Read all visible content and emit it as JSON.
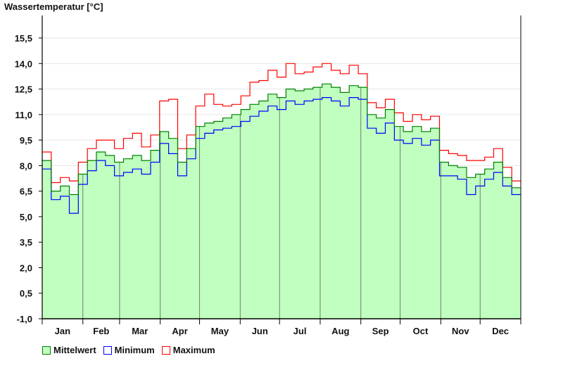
{
  "chart_data": {
    "type": "line",
    "title": "Wassertemperatur [°C]",
    "xlabel": "",
    "ylabel": "Wassertemperatur [°C]",
    "ylim": [
      -1.0,
      16.9
    ],
    "yticks": [
      "-1,0",
      "0,5",
      "2,0",
      "3,5",
      "5,0",
      "6,5",
      "8,0",
      "9,5",
      "11,0",
      "12,5",
      "14,0",
      "15,5"
    ],
    "ytick_values": [
      -1.0,
      0.5,
      2.0,
      3.5,
      5.0,
      6.5,
      8.0,
      9.5,
      11.0,
      12.5,
      14.0,
      15.5
    ],
    "months": [
      "Jan",
      "Feb",
      "Mar",
      "Apr",
      "May",
      "Jun",
      "Jul",
      "Aug",
      "Sep",
      "Oct",
      "Nov",
      "Dec"
    ],
    "month_days": [
      31,
      28,
      31,
      30,
      31,
      30,
      31,
      31,
      30,
      31,
      30,
      31
    ],
    "x_unit": "week of year",
    "grid": true,
    "legend_position": "bottom-left",
    "series": [
      {
        "name": "Mittelwert",
        "color": "#008000",
        "fill": "#c0ffc0",
        "values": [
          8.3,
          6.5,
          6.8,
          6.3,
          7.5,
          8.3,
          8.8,
          8.6,
          8.2,
          8.4,
          8.6,
          8.3,
          8.9,
          10.0,
          9.6,
          8.2,
          9.0,
          10.3,
          10.5,
          10.6,
          10.8,
          11.0,
          11.3,
          11.6,
          11.8,
          12.2,
          12.0,
          12.5,
          12.4,
          12.5,
          12.6,
          12.8,
          12.6,
          12.3,
          12.7,
          12.6,
          11.0,
          10.8,
          11.3,
          10.3,
          10.0,
          10.3,
          10.0,
          10.2,
          8.2,
          8.0,
          7.9,
          7.3,
          7.5,
          7.8,
          8.2,
          7.3,
          6.7
        ]
      },
      {
        "name": "Minimum",
        "color": "#0000ff",
        "values": [
          7.8,
          6.0,
          6.2,
          5.2,
          6.9,
          7.7,
          8.3,
          8.0,
          7.4,
          7.6,
          7.8,
          7.5,
          8.2,
          9.3,
          8.7,
          7.4,
          8.4,
          9.6,
          9.9,
          10.1,
          10.2,
          10.3,
          10.6,
          10.9,
          11.2,
          11.5,
          11.3,
          11.8,
          11.6,
          11.8,
          11.9,
          12.0,
          11.8,
          11.5,
          12.0,
          11.9,
          10.2,
          9.9,
          10.5,
          9.5,
          9.3,
          9.6,
          9.2,
          9.5,
          7.4,
          7.4,
          7.2,
          6.3,
          6.8,
          7.2,
          7.6,
          6.8,
          6.3
        ]
      },
      {
        "name": "Maximum",
        "color": "#ff0000",
        "values": [
          8.8,
          7.0,
          7.3,
          7.1,
          8.2,
          9.0,
          9.5,
          9.5,
          9.0,
          9.6,
          9.9,
          9.1,
          9.8,
          11.8,
          11.9,
          9.0,
          9.8,
          11.5,
          12.2,
          11.6,
          11.5,
          11.6,
          12.1,
          12.9,
          13.0,
          13.6,
          13.2,
          14.0,
          13.4,
          13.5,
          13.8,
          14.0,
          13.6,
          13.4,
          13.9,
          13.4,
          11.7,
          11.4,
          11.9,
          11.1,
          10.6,
          11.0,
          10.7,
          10.9,
          8.9,
          8.7,
          8.6,
          8.3,
          8.3,
          8.5,
          9.0,
          7.9,
          7.1
        ]
      }
    ]
  },
  "legend": {
    "mean": "Mittelwert",
    "min": "Minimum",
    "max": "Maximum"
  }
}
